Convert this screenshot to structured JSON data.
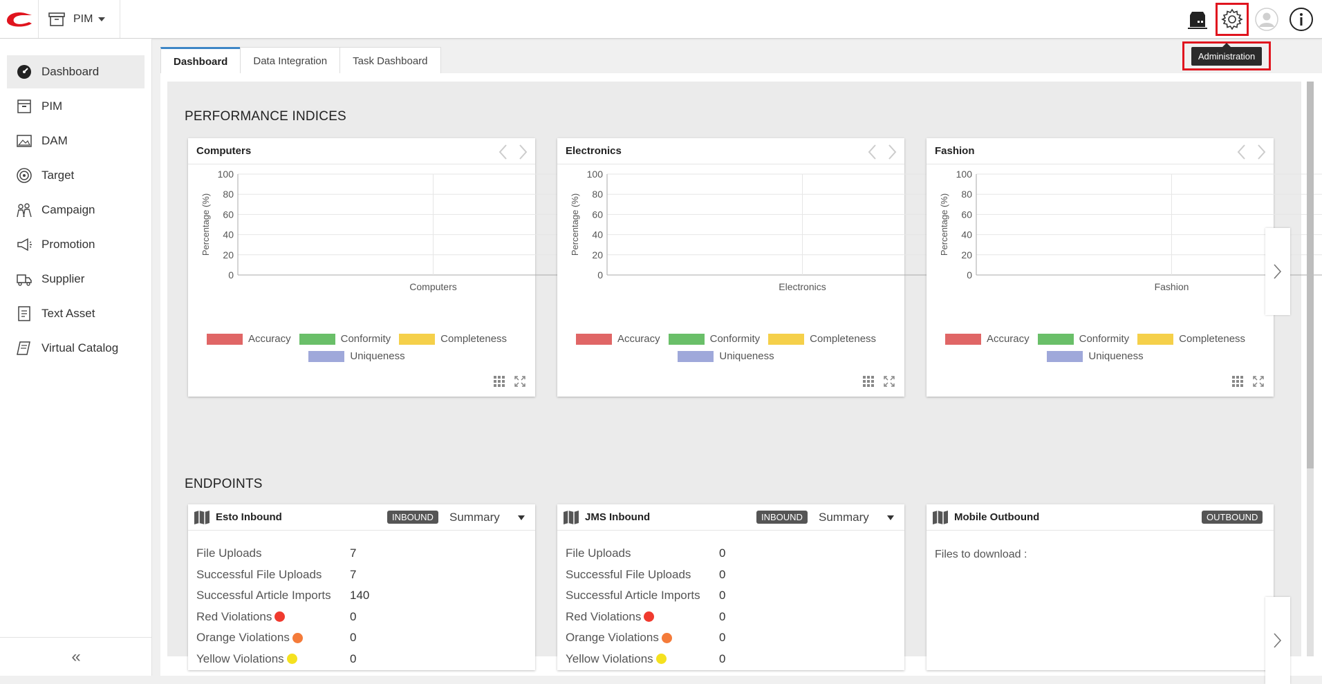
{
  "header": {
    "module_label": "PIM",
    "tooltip": "Administration"
  },
  "sidebar": {
    "items": [
      {
        "label": "Dashboard",
        "icon": "dashboard-gauge-icon"
      },
      {
        "label": "PIM",
        "icon": "pim-box-icon"
      },
      {
        "label": "DAM",
        "icon": "image-icon"
      },
      {
        "label": "Target",
        "icon": "target-icon"
      },
      {
        "label": "Campaign",
        "icon": "campaign-people-icon"
      },
      {
        "label": "Promotion",
        "icon": "megaphone-icon"
      },
      {
        "label": "Supplier",
        "icon": "truck-icon"
      },
      {
        "label": "Text Asset",
        "icon": "text-document-icon"
      },
      {
        "label": "Virtual Catalog",
        "icon": "catalog-book-icon"
      }
    ],
    "collapse_label": "«"
  },
  "tabs": [
    {
      "label": "Dashboard",
      "active": true
    },
    {
      "label": "Data Integration",
      "active": false
    },
    {
      "label": "Task Dashboard",
      "active": false
    }
  ],
  "performance": {
    "title": "PERFORMANCE INDICES",
    "legend": [
      {
        "name": "Accuracy",
        "color": "#e06666"
      },
      {
        "name": "Conformity",
        "color": "#6abf69"
      },
      {
        "name": "Completeness",
        "color": "#f5d04a"
      },
      {
        "name": "Uniqueness",
        "color": "#9fa8da"
      }
    ]
  },
  "chart_data": [
    {
      "type": "bar",
      "title": "Computers",
      "categories": [
        "Computers"
      ],
      "series": [
        {
          "name": "Accuracy",
          "values": [
            0
          ]
        },
        {
          "name": "Conformity",
          "values": [
            0
          ]
        },
        {
          "name": "Completeness",
          "values": [
            0
          ]
        },
        {
          "name": "Uniqueness",
          "values": [
            0
          ]
        }
      ],
      "xlabel": "Computers",
      "ylabel": "Percentage (%)",
      "yticks": [
        "100",
        "80",
        "60",
        "40",
        "20",
        "0"
      ],
      "ylim": [
        0,
        100
      ],
      "grid": true,
      "legend": "bottom"
    },
    {
      "type": "bar",
      "title": "Electronics",
      "categories": [
        "Electronics"
      ],
      "series": [
        {
          "name": "Accuracy",
          "values": [
            0
          ]
        },
        {
          "name": "Conformity",
          "values": [
            0
          ]
        },
        {
          "name": "Completeness",
          "values": [
            0
          ]
        },
        {
          "name": "Uniqueness",
          "values": [
            0
          ]
        }
      ],
      "xlabel": "Electronics",
      "ylabel": "Percentage (%)",
      "yticks": [
        "100",
        "80",
        "60",
        "40",
        "20",
        "0"
      ],
      "ylim": [
        0,
        100
      ],
      "grid": true,
      "legend": "bottom"
    },
    {
      "type": "bar",
      "title": "Fashion",
      "categories": [
        "Fashion"
      ],
      "series": [
        {
          "name": "Accuracy",
          "values": [
            0
          ]
        },
        {
          "name": "Conformity",
          "values": [
            0
          ]
        },
        {
          "name": "Completeness",
          "values": [
            0
          ]
        },
        {
          "name": "Uniqueness",
          "values": [
            0
          ]
        }
      ],
      "xlabel": "Fashion",
      "ylabel": "Percentage (%)",
      "yticks": [
        "100",
        "80",
        "60",
        "40",
        "20",
        "0"
      ],
      "ylim": [
        0,
        100
      ],
      "grid": true,
      "legend": "bottom"
    }
  ],
  "endpoints": {
    "title": "ENDPOINTS",
    "cards": [
      {
        "name": "Esto Inbound",
        "badge": "INBOUND",
        "summary": "Summary",
        "rows": [
          {
            "label": "File Uploads",
            "value": "7"
          },
          {
            "label": "Successful File Uploads",
            "value": "7"
          },
          {
            "label": "Successful Article Imports",
            "value": "140"
          },
          {
            "label": "Red Violations",
            "value": "0",
            "dot": "#f03a2e"
          },
          {
            "label": "Orange Violations",
            "value": "0",
            "dot": "#f47b3a"
          },
          {
            "label": "Yellow Violations",
            "value": "0",
            "dot": "#f5e11f"
          }
        ]
      },
      {
        "name": "JMS Inbound",
        "badge": "INBOUND",
        "summary": "Summary",
        "rows": [
          {
            "label": "File Uploads",
            "value": "0"
          },
          {
            "label": "Successful File Uploads",
            "value": "0"
          },
          {
            "label": "Successful Article Imports",
            "value": "0"
          },
          {
            "label": "Red Violations",
            "value": "0",
            "dot": "#f03a2e"
          },
          {
            "label": "Orange Violations",
            "value": "0",
            "dot": "#f47b3a"
          },
          {
            "label": "Yellow Violations",
            "value": "0",
            "dot": "#f5e11f"
          }
        ]
      },
      {
        "name": "Mobile Outbound",
        "badge": "OUTBOUND",
        "files_label": "Files to download :"
      }
    ]
  }
}
